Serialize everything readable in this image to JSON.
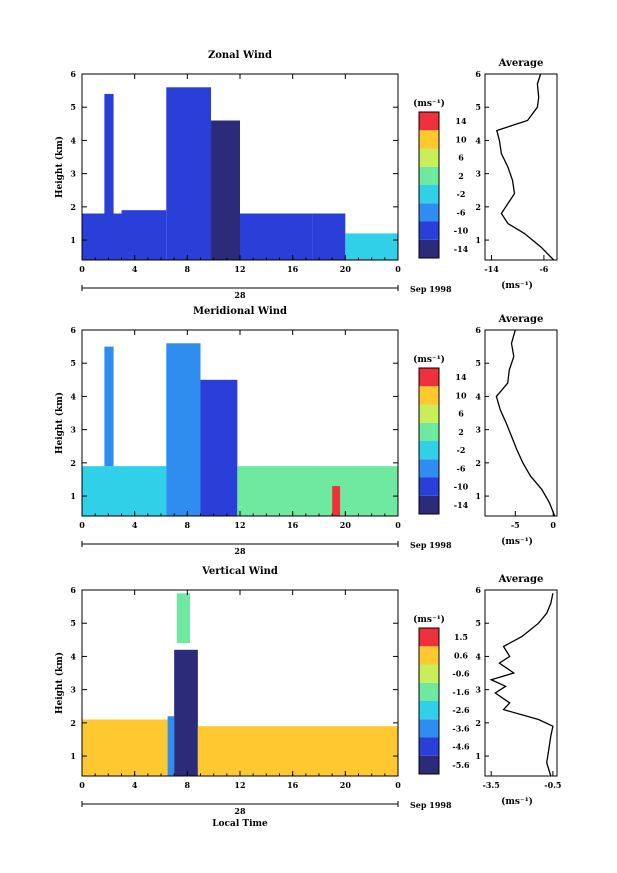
{
  "figure": {
    "time_axis_label": "Local Time",
    "date_day_label": "28",
    "date_month_label": "Sep 1998",
    "colorbar_unit_label": "(ms⁻¹)",
    "average_unit_label": "(ms⁻¹)",
    "height_axis_label": "Height (km)"
  },
  "chart_data": [
    {
      "type": "heatmap",
      "title": "Zonal Wind",
      "xlabel": "",
      "ylabel": "Height (km)",
      "x_ticks": [
        "0",
        "4",
        "8",
        "12",
        "16",
        "20",
        "0"
      ],
      "y_ticks": [
        "1",
        "2",
        "3",
        "4",
        "5",
        "6"
      ],
      "xlim": [
        0,
        24
      ],
      "ylim": [
        0.4,
        6
      ],
      "colorbar": {
        "unit": "(ms⁻¹)",
        "ticks": [
          "14",
          "10",
          "6",
          "2",
          "-2",
          "-6",
          "-10",
          "-14"
        ],
        "range": [
          -16,
          16
        ]
      },
      "regions": [
        {
          "t0": 0.0,
          "t1": 3.0,
          "h0": 0.4,
          "h1": 1.8,
          "value": -11
        },
        {
          "t0": 1.7,
          "t1": 2.4,
          "h0": 1.8,
          "h1": 5.4,
          "value": -12
        },
        {
          "t0": 3.0,
          "t1": 6.4,
          "h0": 0.4,
          "h1": 1.9,
          "value": -11
        },
        {
          "t0": 6.4,
          "t1": 9.8,
          "h0": 0.4,
          "h1": 5.6,
          "value": -12
        },
        {
          "t0": 9.8,
          "t1": 12.0,
          "h0": 0.4,
          "h1": 4.6,
          "value": -14
        },
        {
          "t0": 12.0,
          "t1": 17.5,
          "h0": 0.4,
          "h1": 1.8,
          "value": -11
        },
        {
          "t0": 17.5,
          "t1": 20.0,
          "h0": 0.4,
          "h1": 1.8,
          "value": -9
        },
        {
          "t0": 20.0,
          "t1": 24.0,
          "h0": 0.4,
          "h1": 1.2,
          "value": -3
        }
      ],
      "average_profile": {
        "title": "Average",
        "xlabel": "(ms⁻¹)",
        "x_ticks": [
          "-14",
          "-6"
        ],
        "xlim": [
          -15,
          -4
        ],
        "heights": [
          0.4,
          0.8,
          1.2,
          1.5,
          1.8,
          2.1,
          2.4,
          2.8,
          3.2,
          3.6,
          4.0,
          4.3,
          4.6,
          5.0,
          5.3,
          5.7,
          6.0
        ],
        "values": [
          -4.5,
          -6.5,
          -9.0,
          -11.5,
          -12.5,
          -11.5,
          -10.5,
          -10.8,
          -11.5,
          -12.5,
          -12.8,
          -13.2,
          -8.5,
          -7.0,
          -6.8,
          -7.0,
          -6.5
        ]
      }
    },
    {
      "type": "heatmap",
      "title": "Meridional Wind",
      "xlabel": "",
      "ylabel": "Height (km)",
      "x_ticks": [
        "0",
        "4",
        "8",
        "12",
        "16",
        "20",
        "0"
      ],
      "y_ticks": [
        "1",
        "2",
        "3",
        "4",
        "5",
        "6"
      ],
      "xlim": [
        0,
        24
      ],
      "ylim": [
        0.4,
        6
      ],
      "colorbar": {
        "unit": "(ms⁻¹)",
        "ticks": [
          "14",
          "10",
          "6",
          "2",
          "-2",
          "-6",
          "-10",
          "-14"
        ],
        "range": [
          -16,
          16
        ]
      },
      "regions": [
        {
          "t0": 0.0,
          "t1": 6.4,
          "h0": 0.4,
          "h1": 1.9,
          "value": -2
        },
        {
          "t0": 1.7,
          "t1": 2.4,
          "h0": 1.9,
          "h1": 5.5,
          "value": -8
        },
        {
          "t0": 6.4,
          "t1": 9.0,
          "h0": 0.4,
          "h1": 5.6,
          "value": -6
        },
        {
          "t0": 9.0,
          "t1": 11.8,
          "h0": 0.4,
          "h1": 4.5,
          "value": -10
        },
        {
          "t0": 11.8,
          "t1": 24.0,
          "h0": 0.4,
          "h1": 1.9,
          "value": 0
        },
        {
          "t0": 19.0,
          "t1": 19.6,
          "h0": 0.4,
          "h1": 1.3,
          "value": 12
        }
      ],
      "average_profile": {
        "title": "Average",
        "xlabel": "(ms⁻¹)",
        "x_ticks": [
          "-5",
          "0"
        ],
        "xlim": [
          -9,
          0.5
        ],
        "heights": [
          0.4,
          0.8,
          1.2,
          1.6,
          2.0,
          2.4,
          2.8,
          3.2,
          3.6,
          4.0,
          4.4,
          4.8,
          5.2,
          5.6,
          6.0
        ],
        "values": [
          0.2,
          -0.5,
          -1.5,
          -3.0,
          -4.0,
          -4.8,
          -5.5,
          -6.2,
          -7.0,
          -7.5,
          -6.0,
          -5.8,
          -5.2,
          -5.5,
          -5.0
        ]
      }
    },
    {
      "type": "heatmap",
      "title": "Vertical Wind",
      "xlabel": "Local Time",
      "ylabel": "Height (km)",
      "x_ticks": [
        "0",
        "4",
        "8",
        "12",
        "16",
        "20",
        "0"
      ],
      "y_ticks": [
        "1",
        "2",
        "3",
        "4",
        "5",
        "6"
      ],
      "xlim": [
        0,
        24
      ],
      "ylim": [
        0.4,
        6
      ],
      "colorbar": {
        "unit": "(ms⁻¹)",
        "ticks": [
          "1.5",
          "0.6",
          "-0.6",
          "-1.6",
          "-2.6",
          "-3.6",
          "-4.6",
          "-5.6"
        ],
        "range": [
          -6.1,
          2.0
        ]
      },
      "regions": [
        {
          "t0": 0.0,
          "t1": 6.5,
          "h0": 0.4,
          "h1": 2.1,
          "value": 0.6
        },
        {
          "t0": 6.5,
          "t1": 7.0,
          "h0": 0.4,
          "h1": 2.2,
          "value": -4.0
        },
        {
          "t0": 7.0,
          "t1": 8.8,
          "h0": 0.4,
          "h1": 4.2,
          "value": -5.6
        },
        {
          "t0": 7.2,
          "t1": 8.2,
          "h0": 4.4,
          "h1": 5.9,
          "value": -1.6
        },
        {
          "t0": 8.8,
          "t1": 24.0,
          "h0": 0.4,
          "h1": 1.9,
          "value": 0.7
        }
      ],
      "average_profile": {
        "title": "Average",
        "xlabel": "(ms⁻¹)",
        "x_ticks": [
          "-3.5",
          "-0.5"
        ],
        "xlim": [
          -3.8,
          -0.3
        ],
        "heights": [
          0.4,
          0.8,
          1.2,
          1.6,
          1.9,
          2.1,
          2.4,
          2.6,
          2.9,
          3.1,
          3.3,
          3.5,
          3.8,
          4.0,
          4.3,
          4.6,
          5.0,
          5.3,
          5.6,
          5.9
        ],
        "values": [
          -0.6,
          -0.8,
          -0.7,
          -0.6,
          -0.5,
          -1.2,
          -2.9,
          -2.6,
          -3.3,
          -2.8,
          -3.5,
          -2.4,
          -3.1,
          -2.6,
          -2.9,
          -2.0,
          -1.2,
          -0.8,
          -0.6,
          -0.5
        ]
      }
    }
  ]
}
